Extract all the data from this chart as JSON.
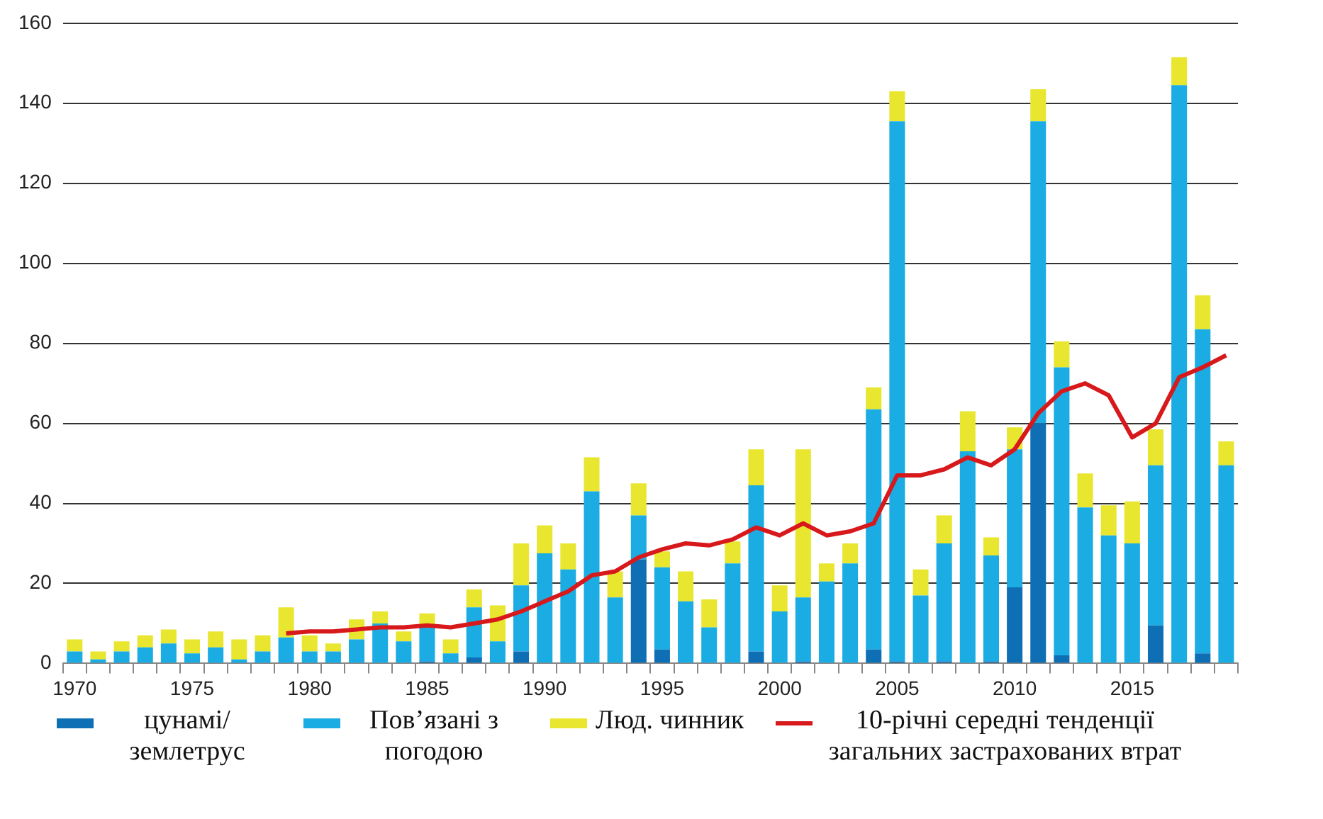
{
  "chart_data": {
    "type": "bar",
    "stacked": true,
    "categories": [
      "1970",
      null,
      null,
      null,
      null,
      "1975",
      null,
      null,
      null,
      null,
      "1980",
      null,
      null,
      null,
      null,
      "1985",
      null,
      null,
      null,
      null,
      "1990",
      null,
      null,
      null,
      null,
      "1995",
      null,
      null,
      null,
      null,
      "2000",
      null,
      null,
      null,
      null,
      "2005",
      null,
      null,
      null,
      null,
      "2010",
      null,
      null,
      null,
      null,
      "2015",
      null,
      null,
      null,
      null
    ],
    "series": [
      {
        "name": "цунамі/землетрус",
        "color": "#0f6fb5",
        "values": [
          0,
          0,
          0,
          0,
          0,
          0,
          0,
          0,
          0,
          0,
          0,
          0,
          0,
          0,
          0,
          0.5,
          0,
          1.5,
          0,
          3,
          0,
          0,
          0,
          0,
          26,
          3.5,
          0,
          0,
          0,
          3,
          0,
          0.5,
          0,
          0,
          3.5,
          0.5,
          0,
          0.5,
          0,
          0.5,
          19,
          60,
          2,
          0,
          0,
          0,
          9.5,
          0,
          2.5,
          0
        ]
      },
      {
        "name": "Пов’язані з погодою",
        "color": "#1aace2",
        "values": [
          3,
          1,
          3,
          4,
          5,
          2.5,
          4,
          1,
          3,
          6.5,
          3,
          3,
          6,
          10,
          5.5,
          9,
          2.5,
          12.5,
          5.5,
          16.5,
          27.5,
          23.5,
          43,
          16.5,
          11,
          20.5,
          15.5,
          9,
          25,
          41.5,
          13,
          16,
          20.5,
          25,
          60,
          135,
          17,
          29.5,
          53,
          26.5,
          34.5,
          75.5,
          72,
          39,
          32,
          30,
          40,
          144.5,
          81,
          49.5
        ]
      },
      {
        "name": "Люд. чинник",
        "color": "#e8e62e",
        "values": [
          3,
          2,
          2.5,
          3,
          3.5,
          3.5,
          4,
          5,
          4,
          7.5,
          4,
          2,
          5,
          3,
          2.5,
          3,
          3.5,
          4.5,
          9,
          10.5,
          7,
          6.5,
          8.5,
          6.5,
          8,
          4,
          7.5,
          7,
          5.5,
          9,
          6.5,
          37,
          4.5,
          5,
          5.5,
          7.5,
          6.5,
          7,
          10,
          4.5,
          5.5,
          8,
          6.5,
          8.5,
          7.5,
          10.5,
          9,
          7,
          8.5,
          6
        ]
      },
      {
        "name": "10-річні середні тенденції загальних застрахованих втрат",
        "type": "line",
        "color": "#d7191c",
        "values": [
          null,
          null,
          null,
          null,
          null,
          null,
          null,
          null,
          null,
          7.5,
          8,
          8,
          8.5,
          9,
          9,
          9.5,
          9,
          10,
          11,
          13,
          15.5,
          18,
          22,
          23,
          26.5,
          28.5,
          30,
          29.5,
          31,
          34,
          32,
          35,
          32,
          33,
          35,
          47,
          47,
          48.5,
          51.5,
          49.5,
          53.5,
          62.5,
          68,
          70,
          67,
          56.5,
          60,
          71.5,
          74,
          77
        ]
      }
    ],
    "ylim": [
      0,
      160
    ],
    "yticks": [
      0,
      20,
      40,
      60,
      80,
      100,
      120,
      140,
      160
    ],
    "grid": "y",
    "legend": "bottom",
    "marker": "none"
  }
}
